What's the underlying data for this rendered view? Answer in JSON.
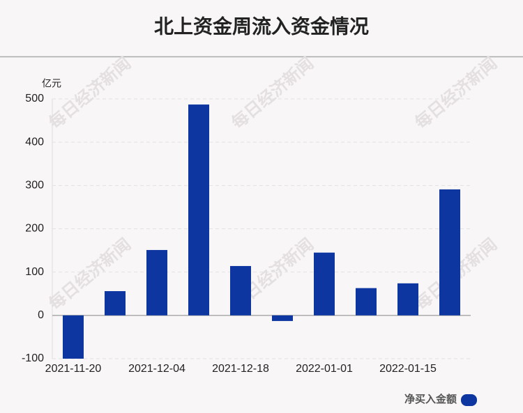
{
  "chart_data": {
    "type": "bar",
    "title": "北上资金周流入资金情况",
    "y_unit": "亿元",
    "watermark": "每日经济新闻",
    "categories": [
      "2021-11-20",
      null,
      "2021-12-04",
      null,
      "2021-12-18",
      null,
      "2022-01-01",
      null,
      "2022-01-15",
      null
    ],
    "series": [
      {
        "name": "净买入金额",
        "color": "#0d36a0",
        "values": [
          -100,
          56,
          151,
          487,
          114,
          -13,
          145,
          63,
          74,
          291
        ]
      }
    ],
    "ylim": [
      -100,
      500
    ],
    "yticks": [
      -100,
      0,
      100,
      200,
      300,
      400,
      500
    ],
    "grid": true,
    "legend": "bottom-right"
  }
}
